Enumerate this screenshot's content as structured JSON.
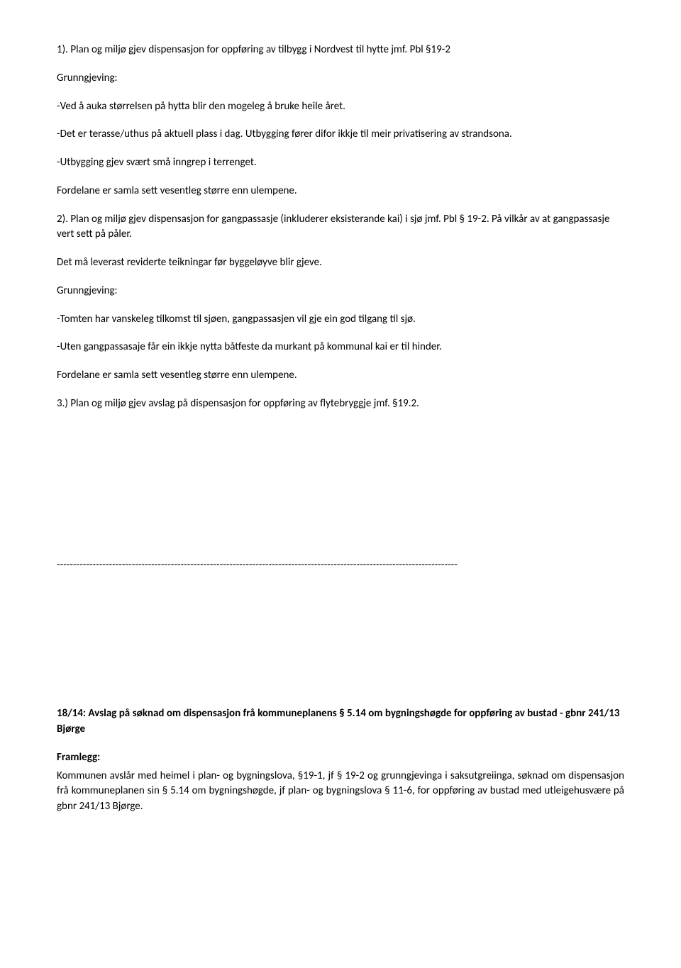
{
  "p1": "1). Plan og miljø gjev dispensasjon for oppføring av tilbygg i Nordvest til hytte jmf. Pbl §19-2",
  "p2": "Grunngjeving:",
  "p3": "-Ved å auka størrelsen på hytta blir den mogeleg å bruke heile året.",
  "p4": "-Det er terasse/uthus på aktuell plass i dag.  Utbygging fører difor ikkje til meir privatisering av strandsona.",
  "p5": "-Utbygging gjev svært små inngrep i terrenget.",
  "p6": "Fordelane er samla sett vesentleg større enn ulempene.",
  "p7": "2). Plan og miljø gjev dispensasjon for gangpassasje (inkluderer eksisterande kai) i sjø jmf. Pbl § 19-2. På vilkår av at gangpassasje vert sett på påler.",
  "p8": "Det må leverast reviderte teikningar før byggeløyve blir gjeve.",
  "p9": "Grunngjeving:",
  "p10": "-Tomten har vanskeleg tilkomst til sjøen, gangpassasjen vil gje ein god tilgang til sjø.",
  "p11": "-Uten gangpassasaje får ein ikkje nytta båtfeste da murkant på kommunal kai er til hinder.",
  "p12": "Fordelane er samla sett vesentleg større enn ulempene.",
  "p13": "3.) Plan og miljø gjev avslag på dispensasjon for oppføring av flytebryggje jmf. §19.2.",
  "divider": "---------------------------------------------------------------------------------------------------------------------------",
  "heading": "18/14: Avslag på søknad om dispensasjon frå kommuneplanens § 5.14 om bygningshøgde for oppføring av bustad - gbnr 241/13 Bjørge",
  "framlegg_label": "Framlegg:",
  "framlegg_body": "Kommunen avslår med heimel i plan- og bygningslova, §19-1, jf § 19-2 og grunngjevinga i saksutgreiinga, søknad om dispensasjon frå kommuneplanen sin § 5.14 om bygningshøgde, jf plan- og bygningslova § 11-6, for oppføring av bustad med utleigehusvære på gbnr 241/13 Bjørge."
}
